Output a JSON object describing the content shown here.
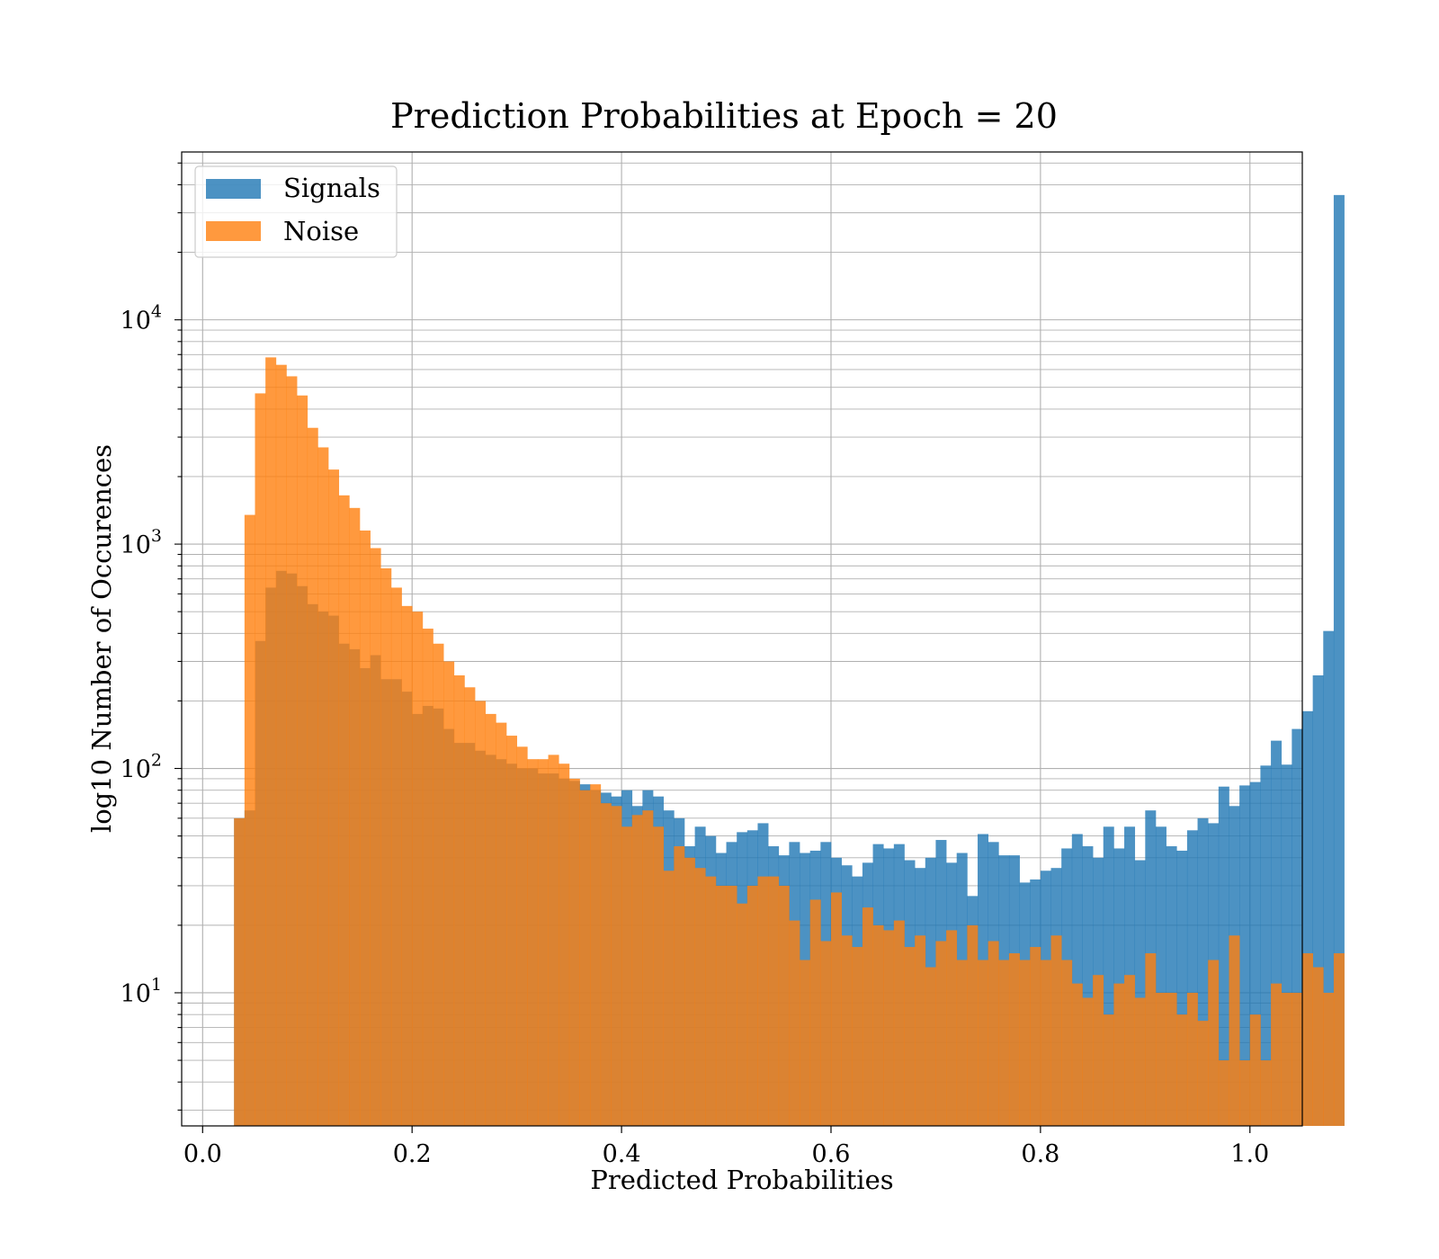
{
  "chart_data": {
    "type": "histogram",
    "title": "Prediction Probabilities at Epoch = 20",
    "xlabel": "Predicted Probabilities",
    "ylabel": "log10 Number of Occurences",
    "y_scale": "log",
    "xlim": [
      -0.02,
      1.05
    ],
    "ylim": [
      2.55,
      56000
    ],
    "grid": true,
    "legend_position": "upper left",
    "x_ticks": [
      0.0,
      0.2,
      0.4,
      0.6,
      0.8,
      1.0
    ],
    "x_tick_labels": [
      "0.0",
      "0.2",
      "0.4",
      "0.6",
      "0.8",
      "1.0"
    ],
    "y_ticks": [
      10,
      100,
      1000,
      10000
    ],
    "y_tick_labels": [
      {
        "base": "10",
        "exp": "1"
      },
      {
        "base": "10",
        "exp": "2"
      },
      {
        "base": "10",
        "exp": "3"
      },
      {
        "base": "10",
        "exp": "4"
      }
    ],
    "colors": {
      "signals": "#1f77b4",
      "noise": "#ff7f0e",
      "grid": "#b0b0b0"
    },
    "series": [
      {
        "name": "Signals",
        "bin_start": 0.03,
        "bin_width": 0.01,
        "values": [
          60,
          65,
          370,
          640,
          760,
          740,
          650,
          540,
          500,
          480,
          360,
          340,
          280,
          320,
          250,
          250,
          220,
          175,
          190,
          185,
          150,
          130,
          130,
          120,
          115,
          110,
          105,
          100,
          100,
          95,
          95,
          90,
          88,
          85,
          80,
          78,
          75,
          80,
          68,
          80,
          75,
          65,
          60,
          45,
          55,
          50,
          42,
          47,
          52,
          53,
          57,
          45,
          41,
          47,
          42,
          43,
          47,
          40,
          37,
          33,
          38,
          46,
          44,
          46,
          39,
          36,
          40,
          48,
          38,
          42,
          27,
          51,
          47,
          41,
          41,
          31,
          32,
          35,
          36,
          44,
          51,
          45,
          40,
          55,
          44,
          55,
          39,
          65,
          55,
          45,
          43,
          53,
          60,
          57,
          83,
          68,
          84,
          87,
          103,
          133,
          104,
          150,
          180,
          260,
          410,
          36000
        ]
      },
      {
        "name": "Noise",
        "bin_start": 0.03,
        "bin_width": 0.01,
        "values": [
          60,
          1350,
          4700,
          6800,
          6300,
          5600,
          4600,
          3300,
          2700,
          2150,
          1650,
          1450,
          1150,
          960,
          780,
          640,
          530,
          500,
          420,
          360,
          300,
          260,
          230,
          200,
          175,
          160,
          140,
          125,
          110,
          110,
          115,
          105,
          90,
          80,
          85,
          70,
          68,
          55,
          62,
          65,
          55,
          35,
          45,
          40,
          36,
          33,
          30,
          30,
          25,
          30,
          33,
          33,
          30,
          21,
          14,
          26,
          17,
          28,
          18,
          16,
          24,
          20,
          19,
          21,
          16,
          18,
          13,
          17,
          19,
          14,
          20,
          14,
          17,
          14,
          15,
          14,
          16,
          14,
          18,
          14,
          11,
          9.5,
          12,
          8,
          11,
          12,
          9.5,
          15,
          10,
          10,
          8,
          10,
          7.5,
          14,
          5,
          18,
          5,
          8,
          5,
          11,
          10,
          10,
          15,
          13,
          10,
          15
        ]
      }
    ]
  }
}
